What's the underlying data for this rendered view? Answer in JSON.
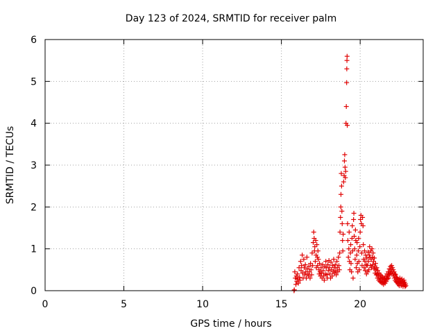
{
  "chart_data": {
    "type": "scatter",
    "title": "Day 123 of 2024, SRMTID for receiver palm",
    "xlabel": "GPS time / hours",
    "ylabel": "SRMTID / TECUs",
    "xlim": [
      0,
      24
    ],
    "ylim": [
      0,
      6
    ],
    "xticks": [
      0,
      5,
      10,
      15,
      20
    ],
    "yticks": [
      0,
      1,
      2,
      3,
      4,
      5,
      6
    ],
    "grid": true,
    "marker": "+",
    "color": "#e00000",
    "series": [
      {
        "name": "SRMTID",
        "points": [
          [
            15.8,
            0.0
          ],
          [
            15.82,
            0.02
          ],
          [
            15.85,
            0.45
          ],
          [
            15.88,
            0.3
          ],
          [
            15.92,
            0.15
          ],
          [
            15.95,
            0.35
          ],
          [
            15.98,
            0.22
          ],
          [
            16.02,
            0.4
          ],
          [
            16.05,
            0.28
          ],
          [
            16.08,
            0.18
          ],
          [
            16.12,
            0.55
          ],
          [
            16.15,
            0.32
          ],
          [
            16.18,
            0.25
          ],
          [
            16.22,
            0.7
          ],
          [
            16.25,
            0.48
          ],
          [
            16.28,
            0.6
          ],
          [
            16.32,
            0.85
          ],
          [
            16.35,
            0.42
          ],
          [
            16.38,
            0.3
          ],
          [
            16.42,
            0.75
          ],
          [
            16.45,
            0.55
          ],
          [
            16.48,
            0.38
          ],
          [
            16.52,
            0.62
          ],
          [
            16.55,
            0.45
          ],
          [
            16.58,
            0.3
          ],
          [
            16.62,
            0.8
          ],
          [
            16.65,
            0.52
          ],
          [
            16.68,
            0.4
          ],
          [
            16.72,
            0.35
          ],
          [
            16.75,
            0.58
          ],
          [
            16.78,
            0.45
          ],
          [
            16.82,
            0.3
          ],
          [
            16.85,
            0.65
          ],
          [
            16.88,
            0.5
          ],
          [
            16.92,
            0.38
          ],
          [
            16.95,
            0.9
          ],
          [
            16.98,
            0.6
          ],
          [
            17.02,
            1.15
          ],
          [
            17.05,
            1.4
          ],
          [
            17.08,
            1.25
          ],
          [
            17.1,
            0.95
          ],
          [
            17.12,
            1.05
          ],
          [
            17.15,
            0.7
          ],
          [
            17.18,
            1.2
          ],
          [
            17.2,
            0.85
          ],
          [
            17.22,
            0.55
          ],
          [
            17.25,
            1.1
          ],
          [
            17.28,
            0.8
          ],
          [
            17.3,
            0.6
          ],
          [
            17.32,
            0.95
          ],
          [
            17.35,
            0.75
          ],
          [
            17.38,
            0.5
          ],
          [
            17.4,
            0.4
          ],
          [
            17.42,
            0.65
          ],
          [
            17.45,
            0.45
          ],
          [
            17.48,
            0.35
          ],
          [
            17.52,
            0.55
          ],
          [
            17.55,
            0.42
          ],
          [
            17.58,
            0.3
          ],
          [
            17.62,
            0.62
          ],
          [
            17.65,
            0.48
          ],
          [
            17.68,
            0.35
          ],
          [
            17.72,
            0.25
          ],
          [
            17.75,
            0.58
          ],
          [
            17.78,
            0.4
          ],
          [
            17.82,
            0.7
          ],
          [
            17.85,
            0.55
          ],
          [
            17.88,
            0.38
          ],
          [
            17.92,
            0.3
          ],
          [
            17.95,
            0.62
          ],
          [
            17.98,
            0.48
          ],
          [
            18.02,
            0.72
          ],
          [
            18.05,
            0.55
          ],
          [
            18.08,
            0.4
          ],
          [
            18.12,
            0.3
          ],
          [
            18.15,
            0.68
          ],
          [
            18.18,
            0.5
          ],
          [
            18.22,
            0.35
          ],
          [
            18.25,
            0.6
          ],
          [
            18.28,
            0.45
          ],
          [
            18.32,
            0.75
          ],
          [
            18.35,
            0.55
          ],
          [
            18.38,
            0.42
          ],
          [
            18.42,
            0.62
          ],
          [
            18.45,
            0.48
          ],
          [
            18.48,
            0.38
          ],
          [
            18.52,
            0.7
          ],
          [
            18.55,
            0.55
          ],
          [
            18.58,
            0.45
          ],
          [
            18.62,
            0.8
          ],
          [
            18.65,
            0.6
          ],
          [
            18.68,
            0.5
          ],
          [
            18.7,
            0.9
          ],
          [
            18.72,
            1.4
          ],
          [
            18.75,
            1.75
          ],
          [
            18.77,
            2.0
          ],
          [
            18.78,
            2.3
          ],
          [
            18.8,
            2.8
          ],
          [
            18.82,
            2.5
          ],
          [
            18.84,
            1.9
          ],
          [
            18.86,
            1.6
          ],
          [
            18.88,
            1.2
          ],
          [
            18.9,
            0.95
          ],
          [
            18.92,
            1.35
          ],
          [
            18.95,
            2.6
          ],
          [
            18.98,
            2.75
          ],
          [
            19.0,
            3.1
          ],
          [
            19.02,
            3.25
          ],
          [
            19.04,
            2.95
          ],
          [
            19.06,
            2.7
          ],
          [
            19.08,
            2.85
          ],
          [
            19.1,
            4.0
          ],
          [
            19.12,
            4.4
          ],
          [
            19.14,
            4.97
          ],
          [
            19.15,
            5.3
          ],
          [
            19.16,
            5.5
          ],
          [
            19.17,
            5.6
          ],
          [
            19.18,
            3.95
          ],
          [
            19.2,
            1.6
          ],
          [
            19.22,
            1.2
          ],
          [
            19.25,
            0.8
          ],
          [
            19.28,
            1.0
          ],
          [
            19.3,
            1.4
          ],
          [
            19.32,
            0.7
          ],
          [
            19.35,
            0.5
          ],
          [
            19.38,
            0.9
          ],
          [
            19.4,
            1.1
          ],
          [
            19.42,
            0.65
          ],
          [
            19.45,
            0.45
          ],
          [
            19.48,
            1.25
          ],
          [
            19.5,
            1.55
          ],
          [
            19.52,
            0.95
          ],
          [
            19.55,
            0.3
          ],
          [
            19.58,
            1.7
          ],
          [
            19.6,
            1.85
          ],
          [
            19.62,
            1.3
          ],
          [
            19.65,
            1.0
          ],
          [
            19.68,
            0.75
          ],
          [
            19.7,
            1.45
          ],
          [
            19.72,
            1.2
          ],
          [
            19.75,
            0.55
          ],
          [
            19.78,
            0.85
          ],
          [
            19.8,
            1.15
          ],
          [
            19.82,
            0.65
          ],
          [
            19.85,
            0.45
          ],
          [
            19.88,
            0.95
          ],
          [
            19.9,
            1.25
          ],
          [
            19.92,
            0.7
          ],
          [
            19.95,
            0.5
          ],
          [
            19.98,
            1.05
          ],
          [
            20.0,
            1.4
          ],
          [
            20.02,
            1.7
          ],
          [
            20.05,
            1.8
          ],
          [
            20.08,
            1.6
          ],
          [
            20.1,
            0.9
          ],
          [
            20.12,
            0.6
          ],
          [
            20.15,
            1.75
          ],
          [
            20.18,
            1.55
          ],
          [
            20.2,
            1.1
          ],
          [
            20.22,
            0.75
          ],
          [
            20.25,
            0.55
          ],
          [
            20.28,
            0.95
          ],
          [
            20.3,
            0.7
          ],
          [
            20.32,
            0.48
          ],
          [
            20.35,
            0.85
          ],
          [
            20.38,
            0.62
          ],
          [
            20.4,
            0.4
          ],
          [
            20.42,
            0.78
          ],
          [
            20.45,
            0.6
          ],
          [
            20.48,
            0.45
          ],
          [
            20.5,
            0.92
          ],
          [
            20.52,
            0.7
          ],
          [
            20.55,
            0.5
          ],
          [
            20.58,
            0.85
          ],
          [
            20.6,
            1.05
          ],
          [
            20.62,
            0.8
          ],
          [
            20.65,
            0.6
          ],
          [
            20.68,
            0.95
          ],
          [
            20.7,
            0.75
          ],
          [
            20.72,
            0.55
          ],
          [
            20.75,
            1.0
          ],
          [
            20.78,
            0.8
          ],
          [
            20.8,
            0.62
          ],
          [
            20.82,
            0.9
          ],
          [
            20.85,
            0.7
          ],
          [
            20.88,
            0.52
          ],
          [
            20.9,
            0.78
          ],
          [
            20.92,
            0.58
          ],
          [
            20.95,
            0.42
          ],
          [
            20.98,
            0.65
          ],
          [
            21.0,
            0.5
          ],
          [
            21.02,
            0.38
          ],
          [
            21.05,
            0.55
          ],
          [
            21.08,
            0.4
          ],
          [
            21.1,
            0.3
          ],
          [
            21.12,
            0.48
          ],
          [
            21.15,
            0.35
          ],
          [
            21.18,
            0.25
          ],
          [
            21.2,
            0.42
          ],
          [
            21.22,
            0.3
          ],
          [
            21.25,
            0.22
          ],
          [
            21.28,
            0.38
          ],
          [
            21.3,
            0.28
          ],
          [
            21.32,
            0.2
          ],
          [
            21.35,
            0.35
          ],
          [
            21.38,
            0.25
          ],
          [
            21.4,
            0.18
          ],
          [
            21.42,
            0.32
          ],
          [
            21.45,
            0.22
          ],
          [
            21.48,
            0.15
          ],
          [
            21.5,
            0.3
          ],
          [
            21.52,
            0.2
          ],
          [
            21.55,
            0.28
          ],
          [
            21.58,
            0.18
          ],
          [
            21.6,
            0.25
          ],
          [
            21.62,
            0.35
          ],
          [
            21.65,
            0.22
          ],
          [
            21.68,
            0.3
          ],
          [
            21.7,
            0.4
          ],
          [
            21.72,
            0.28
          ],
          [
            21.75,
            0.35
          ],
          [
            21.78,
            0.45
          ],
          [
            21.8,
            0.3
          ],
          [
            21.82,
            0.4
          ],
          [
            21.85,
            0.52
          ],
          [
            21.88,
            0.38
          ],
          [
            21.9,
            0.45
          ],
          [
            21.92,
            0.58
          ],
          [
            21.95,
            0.42
          ],
          [
            21.98,
            0.5
          ],
          [
            22.0,
            0.6
          ],
          [
            22.02,
            0.45
          ],
          [
            22.05,
            0.55
          ],
          [
            22.08,
            0.4
          ],
          [
            22.1,
            0.5
          ],
          [
            22.12,
            0.35
          ],
          [
            22.15,
            0.45
          ],
          [
            22.18,
            0.3
          ],
          [
            22.2,
            0.4
          ],
          [
            22.22,
            0.25
          ],
          [
            22.25,
            0.38
          ],
          [
            22.28,
            0.22
          ],
          [
            22.3,
            0.32
          ],
          [
            22.32,
            0.2
          ],
          [
            22.35,
            0.3
          ],
          [
            22.38,
            0.18
          ],
          [
            22.4,
            0.28
          ],
          [
            22.42,
            0.15
          ],
          [
            22.45,
            0.25
          ],
          [
            22.48,
            0.12
          ],
          [
            22.5,
            0.22
          ],
          [
            22.52,
            0.3
          ],
          [
            22.55,
            0.18
          ],
          [
            22.58,
            0.25
          ],
          [
            22.6,
            0.12
          ],
          [
            22.62,
            0.2
          ],
          [
            22.65,
            0.28
          ],
          [
            22.68,
            0.15
          ],
          [
            22.7,
            0.22
          ],
          [
            22.72,
            0.1
          ],
          [
            22.75,
            0.18
          ],
          [
            22.78,
            0.25
          ],
          [
            22.8,
            0.14
          ],
          [
            22.82,
            0.2
          ],
          [
            22.85,
            0.1
          ],
          [
            22.88,
            0.16
          ],
          [
            22.9,
            0.12
          ]
        ]
      }
    ]
  }
}
